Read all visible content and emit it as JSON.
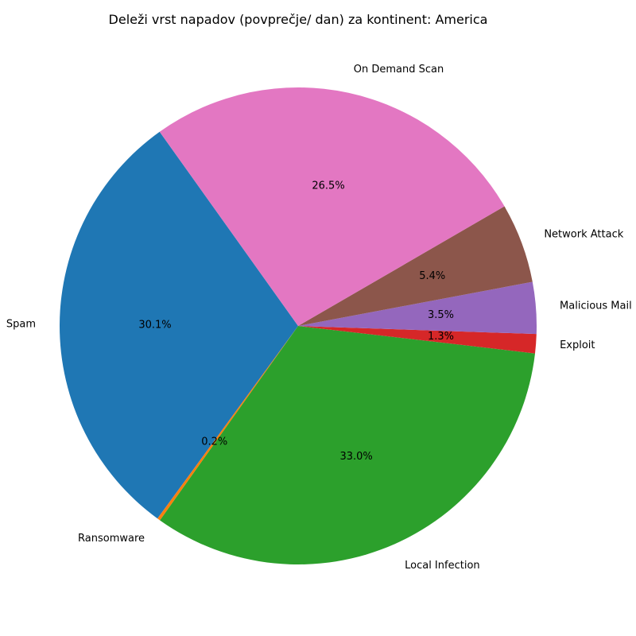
{
  "chart_data": {
    "type": "pie",
    "title": "Deleži vrst napadov (povprečje/ dan) za kontinent: America",
    "start_angle_deg": 125.5,
    "direction": "counterclockwise",
    "slices": [
      {
        "label": "Spam",
        "percent": 30.1,
        "pct_label": "30.1%",
        "color": "#1f77b4"
      },
      {
        "label": "Ransomware",
        "percent": 0.2,
        "pct_label": "0.2%",
        "color": "#ff7f0e"
      },
      {
        "label": "Local Infection",
        "percent": 33.0,
        "pct_label": "33.0%",
        "color": "#2ca02c"
      },
      {
        "label": "Exploit",
        "percent": 1.3,
        "pct_label": "1.3%",
        "color": "#d62728"
      },
      {
        "label": "Malicious Mail",
        "percent": 3.5,
        "pct_label": "3.5%",
        "color": "#9467bd"
      },
      {
        "label": "Network Attack",
        "percent": 5.4,
        "pct_label": "5.4%",
        "color": "#8c564b"
      },
      {
        "label": "On Demand Scan",
        "percent": 26.5,
        "pct_label": "26.5%",
        "color": "#e377c2"
      }
    ]
  }
}
